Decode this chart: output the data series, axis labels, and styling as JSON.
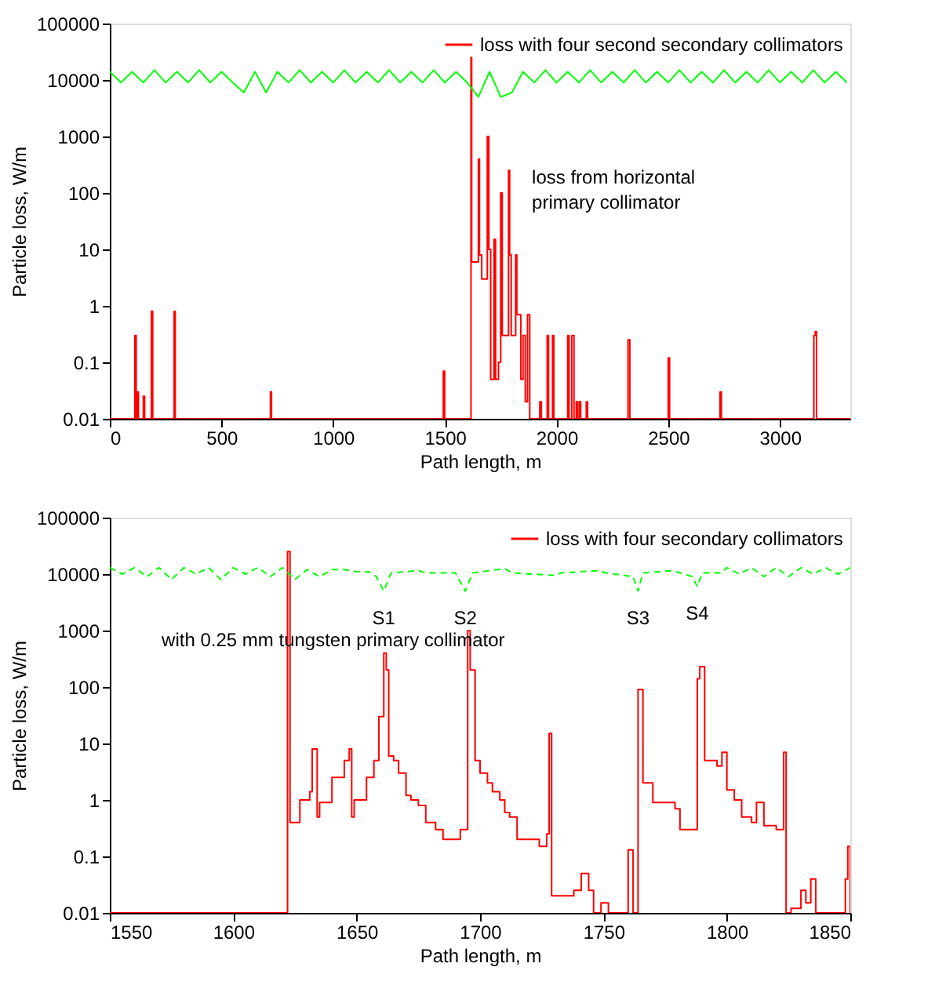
{
  "chart_data": [
    {
      "type": "step",
      "xlabel": "Path length, m",
      "ylabel": "Particle loss, W/m",
      "log": "y",
      "xlim": [
        0,
        3315
      ],
      "xticks": [
        0,
        500,
        1000,
        1500,
        2000,
        2500,
        3000
      ],
      "ylim": [
        0.01,
        100000
      ],
      "yticks": [
        0.01,
        0.1,
        1,
        10,
        100,
        1000,
        10000,
        100000
      ],
      "grid": false,
      "legend": "top right",
      "annotations": [
        "loss from horizontal primary collimator"
      ],
      "series": [
        {
          "name": "loss with four second secondary collimators",
          "color": "#ff0000",
          "line_style": "solid",
          "x": [
            0,
            112,
            118,
            122,
            128,
            150,
            156,
            186,
            192,
            288,
            293,
            719,
            724,
            1493,
            1499,
            1617,
            1620,
            1650,
            1655,
            1665,
            1690,
            1697,
            1705,
            1720,
            1727,
            1740,
            1750,
            1757,
            1785,
            1790,
            1797,
            1817,
            1822,
            1840,
            1850,
            1860,
            1870,
            1880,
            1925,
            1932,
            1958,
            1964,
            1982,
            1988,
            2050,
            2056,
            2068,
            2078,
            2088,
            2094,
            2102,
            2108,
            2133,
            2139,
            2320,
            2328,
            2500,
            2506,
            2732,
            2738,
            3152,
            3158,
            3164,
            3315
          ],
          "values": [
            0.01,
            0.3,
            0.01,
            0.03,
            0.01,
            0.025,
            0.01,
            0.8,
            0.01,
            0.8,
            0.01,
            0.03,
            0.01,
            0.07,
            0.01,
            25000,
            6,
            400,
            8,
            3,
            1000,
            10,
            0.05,
            15,
            0.05,
            0.1,
            100,
            0.3,
            250,
            8,
            0.3,
            8,
            0.7,
            0.05,
            0.3,
            0.02,
            0.7,
            0.01,
            0.02,
            0.01,
            0.3,
            0.01,
            0.3,
            0.01,
            0.3,
            0.01,
            0.3,
            0.01,
            0.02,
            0.01,
            0.02,
            0.01,
            0.02,
            0.01,
            0.25,
            0.01,
            0.12,
            0.01,
            0.03,
            0.01,
            0.3,
            0.35,
            0.01,
            0.01
          ]
        },
        {
          "type": "line",
          "color": "#00ff00",
          "line_style": "solid",
          "x": [
            0,
            50,
            100,
            150,
            200,
            250,
            300,
            350,
            400,
            450,
            500,
            550,
            600,
            650,
            700,
            750,
            800,
            850,
            900,
            950,
            1000,
            1050,
            1100,
            1150,
            1200,
            1250,
            1300,
            1350,
            1400,
            1450,
            1500,
            1550,
            1600,
            1650,
            1700,
            1750,
            1800,
            1850,
            1900,
            1950,
            2000,
            2050,
            2100,
            2150,
            2200,
            2250,
            2300,
            2350,
            2400,
            2450,
            2500,
            2550,
            2600,
            2650,
            2700,
            2750,
            2800,
            2850,
            2900,
            2950,
            3000,
            3050,
            3100,
            3150,
            3200,
            3250,
            3300
          ],
          "values": [
            14000,
            9000,
            14000,
            9000,
            15000,
            9000,
            14000,
            9000,
            15000,
            9000,
            14000,
            9000,
            6000,
            14000,
            6000,
            14000,
            9000,
            15000,
            9000,
            14000,
            9000,
            15000,
            9000,
            14000,
            9000,
            15000,
            9000,
            14000,
            9000,
            15000,
            9000,
            14000,
            9000,
            5000,
            14000,
            5000,
            6000,
            14000,
            9000,
            15000,
            9000,
            14000,
            9000,
            15000,
            9000,
            14000,
            9000,
            15000,
            9000,
            14000,
            9000,
            15000,
            9000,
            14000,
            9000,
            15000,
            9000,
            14000,
            9000,
            15000,
            9000,
            14000,
            9000,
            15000,
            9000,
            14000,
            9000
          ]
        }
      ]
    },
    {
      "type": "step",
      "xlabel": "Path length, m",
      "ylabel": "Particle loss, W/m",
      "log": "y",
      "xlim": [
        1550,
        1850
      ],
      "xticks": [
        1550,
        1600,
        1650,
        1700,
        1750,
        1800,
        1850
      ],
      "ylim": [
        0.01,
        100000
      ],
      "yticks": [
        0.01,
        0.1,
        1,
        10,
        100,
        1000,
        10000,
        100000
      ],
      "grid": false,
      "legend": "top right",
      "annotations": [
        "with 0.25 mm tungsten primary collimator",
        {
          "text": "S1",
          "x": 1661,
          "y": 5000
        },
        {
          "text": "S2",
          "x": 1694,
          "y": 5000
        },
        {
          "text": "S3",
          "x": 1764,
          "y": 5000
        },
        {
          "text": "S4",
          "x": 1788,
          "y": 6000
        }
      ],
      "series": [
        {
          "name": "loss with four secondary collimators",
          "color": "#ff0000",
          "line_style": "solid",
          "x": [
            1550,
            1622,
            1623,
            1627,
            1631,
            1632,
            1634,
            1635,
            1640,
            1645,
            1647,
            1648,
            1649,
            1654,
            1657,
            1659,
            1661,
            1662,
            1663,
            1665,
            1667,
            1670,
            1672,
            1675,
            1678,
            1682,
            1685,
            1688,
            1692,
            1695,
            1696,
            1698,
            1700,
            1703,
            1705,
            1708,
            1710,
            1712,
            1715,
            1721,
            1724,
            1727,
            1728,
            1729,
            1738,
            1741,
            1744,
            1746,
            1749,
            1752,
            1760,
            1762,
            1764,
            1766,
            1770,
            1779,
            1781,
            1788,
            1789,
            1791,
            1796,
            1798,
            1800,
            1803,
            1806,
            1810,
            1812,
            1815,
            1820,
            1823,
            1824,
            1826,
            1830,
            1832,
            1834,
            1836,
            1848,
            1849,
            1850
          ],
          "values": [
            0.01,
            25000,
            0.4,
            1,
            1.4,
            8,
            0.5,
            0.9,
            2.5,
            5,
            8,
            0.5,
            1,
            2.5,
            5,
            30,
            400,
            200,
            6,
            5,
            3,
            1.2,
            1,
            0.8,
            0.4,
            0.3,
            0.2,
            0.2,
            0.3,
            1000,
            200,
            5,
            3,
            2,
            1.4,
            1,
            0.6,
            0.5,
            0.2,
            0.2,
            0.15,
            0.25,
            15,
            0.02,
            0.025,
            0.05,
            0.025,
            0.01,
            0.015,
            0.01,
            0.13,
            0.01,
            90,
            2,
            0.9,
            0.7,
            0.3,
            140,
            230,
            5,
            4,
            7,
            1.5,
            1,
            0.5,
            0.4,
            0.9,
            0.35,
            0.3,
            7,
            0.01,
            0.012,
            0.025,
            0.015,
            0.04,
            0.01,
            0.04,
            0.15,
            0.01
          ]
        },
        {
          "type": "line",
          "color": "#00ff00",
          "line_style": "dashed",
          "x": [
            1550,
            1555,
            1560,
            1565,
            1570,
            1575,
            1580,
            1585,
            1590,
            1595,
            1600,
            1605,
            1610,
            1615,
            1620,
            1625,
            1630,
            1635,
            1640,
            1645,
            1650,
            1655,
            1658,
            1661,
            1664,
            1675,
            1678,
            1690,
            1694,
            1697,
            1710,
            1713,
            1730,
            1733,
            1748,
            1751,
            1762,
            1764,
            1766,
            1778,
            1781,
            1786,
            1788,
            1790,
            1798,
            1800,
            1805,
            1810,
            1815,
            1820,
            1825,
            1830,
            1835,
            1840,
            1845,
            1850
          ],
          "values": [
            13000,
            10000,
            13000,
            9000,
            13000,
            8000,
            13000,
            10000,
            13000,
            8000,
            13000,
            10000,
            13000,
            9000,
            13000,
            8000,
            12000,
            9000,
            12000,
            12000,
            11000,
            11000,
            9000,
            5000,
            10500,
            11500,
            10500,
            10500,
            5000,
            10500,
            12500,
            10500,
            9500,
            10500,
            11500,
            10500,
            9000,
            5000,
            10500,
            11500,
            10500,
            9000,
            6000,
            10500,
            10500,
            13000,
            10000,
            13000,
            9000,
            13000,
            9000,
            13000,
            10000,
            13000,
            10000,
            13000
          ]
        }
      ]
    }
  ]
}
